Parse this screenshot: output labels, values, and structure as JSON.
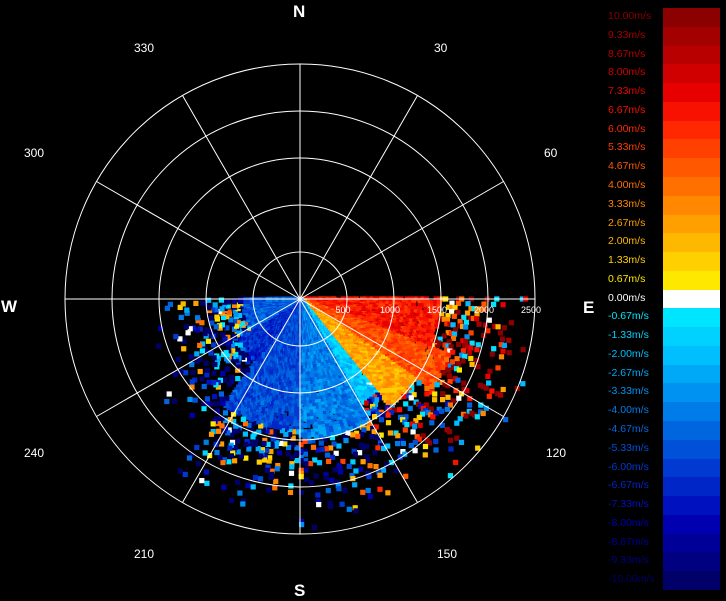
{
  "compass": {
    "n": "N",
    "s": "S",
    "e": "E",
    "w": "W"
  },
  "bearings": [
    "330",
    "30",
    "300",
    "60",
    "240",
    "120",
    "210",
    "150"
  ],
  "range_ticks": [
    "500",
    "1000",
    "1500",
    "2000",
    "2500"
  ],
  "chart_data": {
    "type": "heatmap",
    "title": "",
    "projection": "polar radial-velocity PPI",
    "range_rings": [
      500,
      1000,
      1500,
      2000,
      2500
    ],
    "max_range": 2500,
    "spoke_interval_deg": 30,
    "sector_coverage_deg": [
      90,
      270
    ],
    "colorbar": [
      {
        "label": "10.00m/s",
        "value": 10.0,
        "color": "#8b0000"
      },
      {
        "label": "9.33m/s",
        "value": 9.33,
        "color": "#a30000"
      },
      {
        "label": "8.67m/s",
        "value": 8.67,
        "color": "#b80000"
      },
      {
        "label": "8.00m/s",
        "value": 8.0,
        "color": "#d00000"
      },
      {
        "label": "7.33m/s",
        "value": 7.33,
        "color": "#e60000"
      },
      {
        "label": "6.67m/s",
        "value": 6.67,
        "color": "#f81000"
      },
      {
        "label": "6.00m/s",
        "value": 6.0,
        "color": "#ff2800"
      },
      {
        "label": "5.33m/s",
        "value": 5.33,
        "color": "#ff4000"
      },
      {
        "label": "4.67m/s",
        "value": 4.67,
        "color": "#ff5800"
      },
      {
        "label": "4.00m/s",
        "value": 4.0,
        "color": "#ff7000"
      },
      {
        "label": "3.33m/s",
        "value": 3.33,
        "color": "#ff8800"
      },
      {
        "label": "2.67m/s",
        "value": 2.67,
        "color": "#ffa000"
      },
      {
        "label": "2.00m/s",
        "value": 2.0,
        "color": "#ffb800"
      },
      {
        "label": "1.33m/s",
        "value": 1.33,
        "color": "#ffd000"
      },
      {
        "label": "0.67m/s",
        "value": 0.67,
        "color": "#ffe800"
      },
      {
        "label": "0.00m/s",
        "value": 0.0,
        "color": "#ffffff"
      },
      {
        "label": "-0.67m/s",
        "value": -0.67,
        "color": "#00e5ff"
      },
      {
        "label": "-1.33m/s",
        "value": -1.33,
        "color": "#00d2ff"
      },
      {
        "label": "-2.00m/s",
        "value": -2.0,
        "color": "#00bfff"
      },
      {
        "label": "-2.67m/s",
        "value": -2.67,
        "color": "#00a8f8"
      },
      {
        "label": "-3.33m/s",
        "value": -3.33,
        "color": "#0092f0"
      },
      {
        "label": "-4.00m/s",
        "value": -4.0,
        "color": "#007ce8"
      },
      {
        "label": "-4.67m/s",
        "value": -4.67,
        "color": "#0066e0"
      },
      {
        "label": "-5.33m/s",
        "value": -5.33,
        "color": "#0050d8"
      },
      {
        "label": "-6.00m/s",
        "value": -6.0,
        "color": "#003ad0"
      },
      {
        "label": "-6.67m/s",
        "value": -6.67,
        "color": "#0026c8"
      },
      {
        "label": "-7.33m/s",
        "value": -7.33,
        "color": "#0012c0"
      },
      {
        "label": "-8.00m/s",
        "value": -8.0,
        "color": "#0000b0"
      },
      {
        "label": "-8.67m/s",
        "value": -8.67,
        "color": "#000098"
      },
      {
        "label": "-9.33m/s",
        "value": -9.33,
        "color": "#000080"
      },
      {
        "label": "-10.00m/s",
        "value": -10.0,
        "color": "#000068"
      }
    ],
    "velocity_field": [
      {
        "az_from": 90,
        "az_to": 110,
        "r_from": 0,
        "r_to": 1500,
        "velocity": 6.5
      },
      {
        "az_from": 110,
        "az_to": 125,
        "r_from": 0,
        "r_to": 1700,
        "velocity": 5.0
      },
      {
        "az_from": 125,
        "az_to": 140,
        "r_from": 0,
        "r_to": 1500,
        "velocity": 2.5
      },
      {
        "az_from": 140,
        "az_to": 150,
        "r_from": 0,
        "r_to": 1300,
        "velocity": -1.5
      },
      {
        "az_from": 150,
        "az_to": 180,
        "r_from": 0,
        "r_to": 1500,
        "velocity": -4.0
      },
      {
        "az_from": 180,
        "az_to": 215,
        "r_from": 0,
        "r_to": 1400,
        "velocity": -5.5
      },
      {
        "az_from": 215,
        "az_to": 240,
        "r_from": 0,
        "r_to": 800,
        "velocity": -6.5
      }
    ]
  }
}
